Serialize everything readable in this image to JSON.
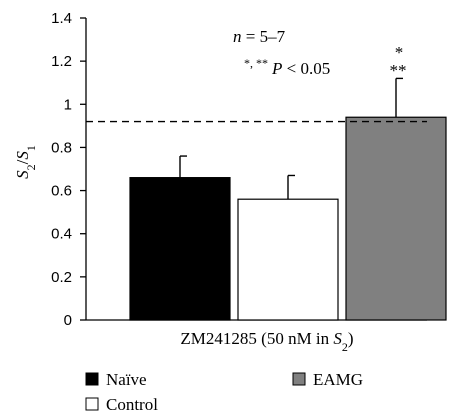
{
  "chart_data": {
    "type": "bar",
    "ylabel": {
      "main": "S",
      "sub1": "2",
      "slash": "/",
      "main2": "S",
      "sub2": "1"
    },
    "xlabel": {
      "prefix": "ZM241285 (50 nM in ",
      "main": "S",
      "sub": "2",
      "suffix": ")"
    },
    "ylim": [
      0,
      1.4
    ],
    "yticks": [
      "0",
      "0.2",
      "0.4",
      "0.6",
      "0.8",
      "1",
      "1.2",
      "1.4"
    ],
    "categories": [
      "Naïve",
      "Control",
      "EAMG"
    ],
    "values": [
      0.66,
      0.56,
      0.94
    ],
    "errors": [
      0.1,
      0.11,
      0.18
    ],
    "colors": [
      "#000000",
      "#ffffff",
      "#808080"
    ],
    "reference_line": 0.92,
    "annotations": {
      "n_italic": "n",
      "n_text": " = 5–7",
      "p_stars": "*, **",
      "p_italic": "P",
      "p_text": " < 0.05",
      "eamg_star_top": "*",
      "eamg_star_bottom": "**"
    },
    "legend": [
      {
        "label": "Naïve",
        "color": "#000000"
      },
      {
        "label": "EAMG",
        "color": "#808080"
      },
      {
        "label": "Control",
        "color": "#ffffff"
      }
    ]
  }
}
